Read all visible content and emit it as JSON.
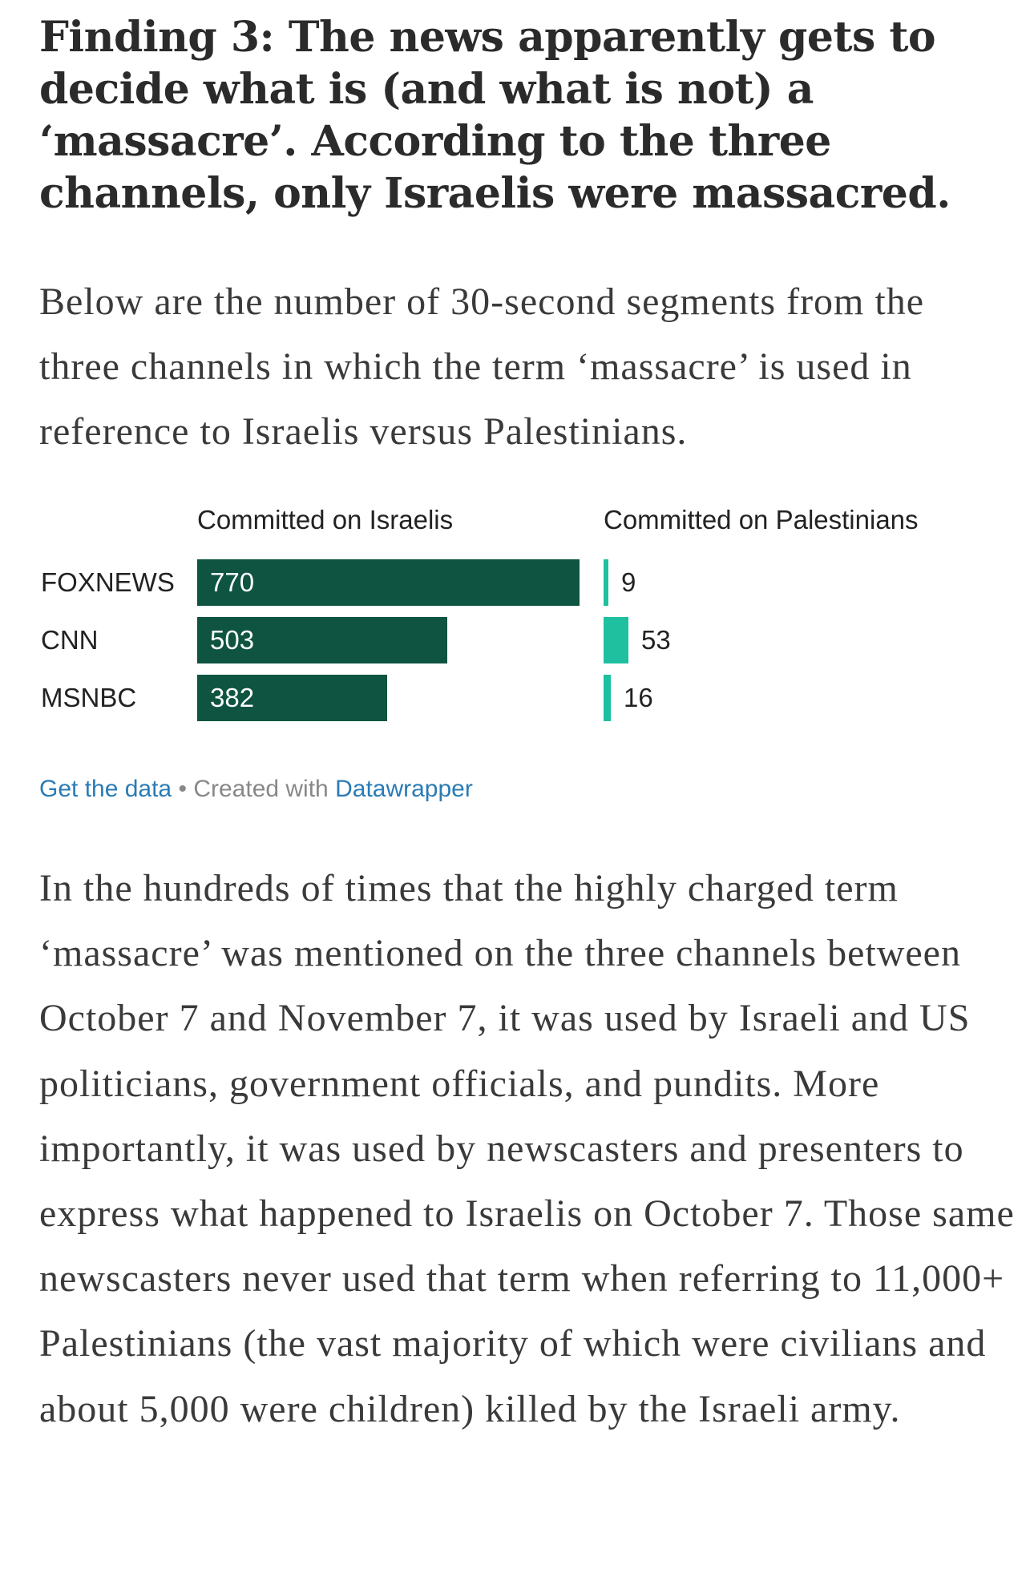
{
  "heading": "Finding 3: The news apparently gets to decide what is (and what is not) a ‘massacre’. According to the three channels, only Israelis were massacred.",
  "intro": "Below are the number of 30-second segments from the three channels in which the term ‘massacre’ is used in reference to Israelis versus Palestinians.",
  "chart_data": {
    "type": "bar",
    "orientation": "horizontal",
    "categories": [
      "FOXNEWS",
      "CNN",
      "MSNBC"
    ],
    "series": [
      {
        "name": "Committed on Israelis",
        "values": [
          770,
          503,
          382
        ],
        "color": "#0e5440"
      },
      {
        "name": "Committed on Palestinians",
        "values": [
          9,
          53,
          16
        ],
        "color": "#1ec0a0"
      }
    ],
    "xlim": [
      0,
      770
    ],
    "grid": false,
    "legend": "column headers"
  },
  "footer": {
    "get_data": "Get the data",
    "separator": "•",
    "created_with": "Created with",
    "tool": "Datawrapper"
  },
  "body": "In the hundreds of times that the highly charged term ‘massacre’ was mentioned on the three channels between October 7 and November 7, it was used by Israeli and US politicians, government officials, and pundits. More importantly, it was used by newscasters and presenters to express what happened to Israelis on October 7. Those same newscasters never used that term when referring to 11,000+ Palestinians (the vast majority of which were civilians and about 5,000 were children) killed by the Israeli army."
}
